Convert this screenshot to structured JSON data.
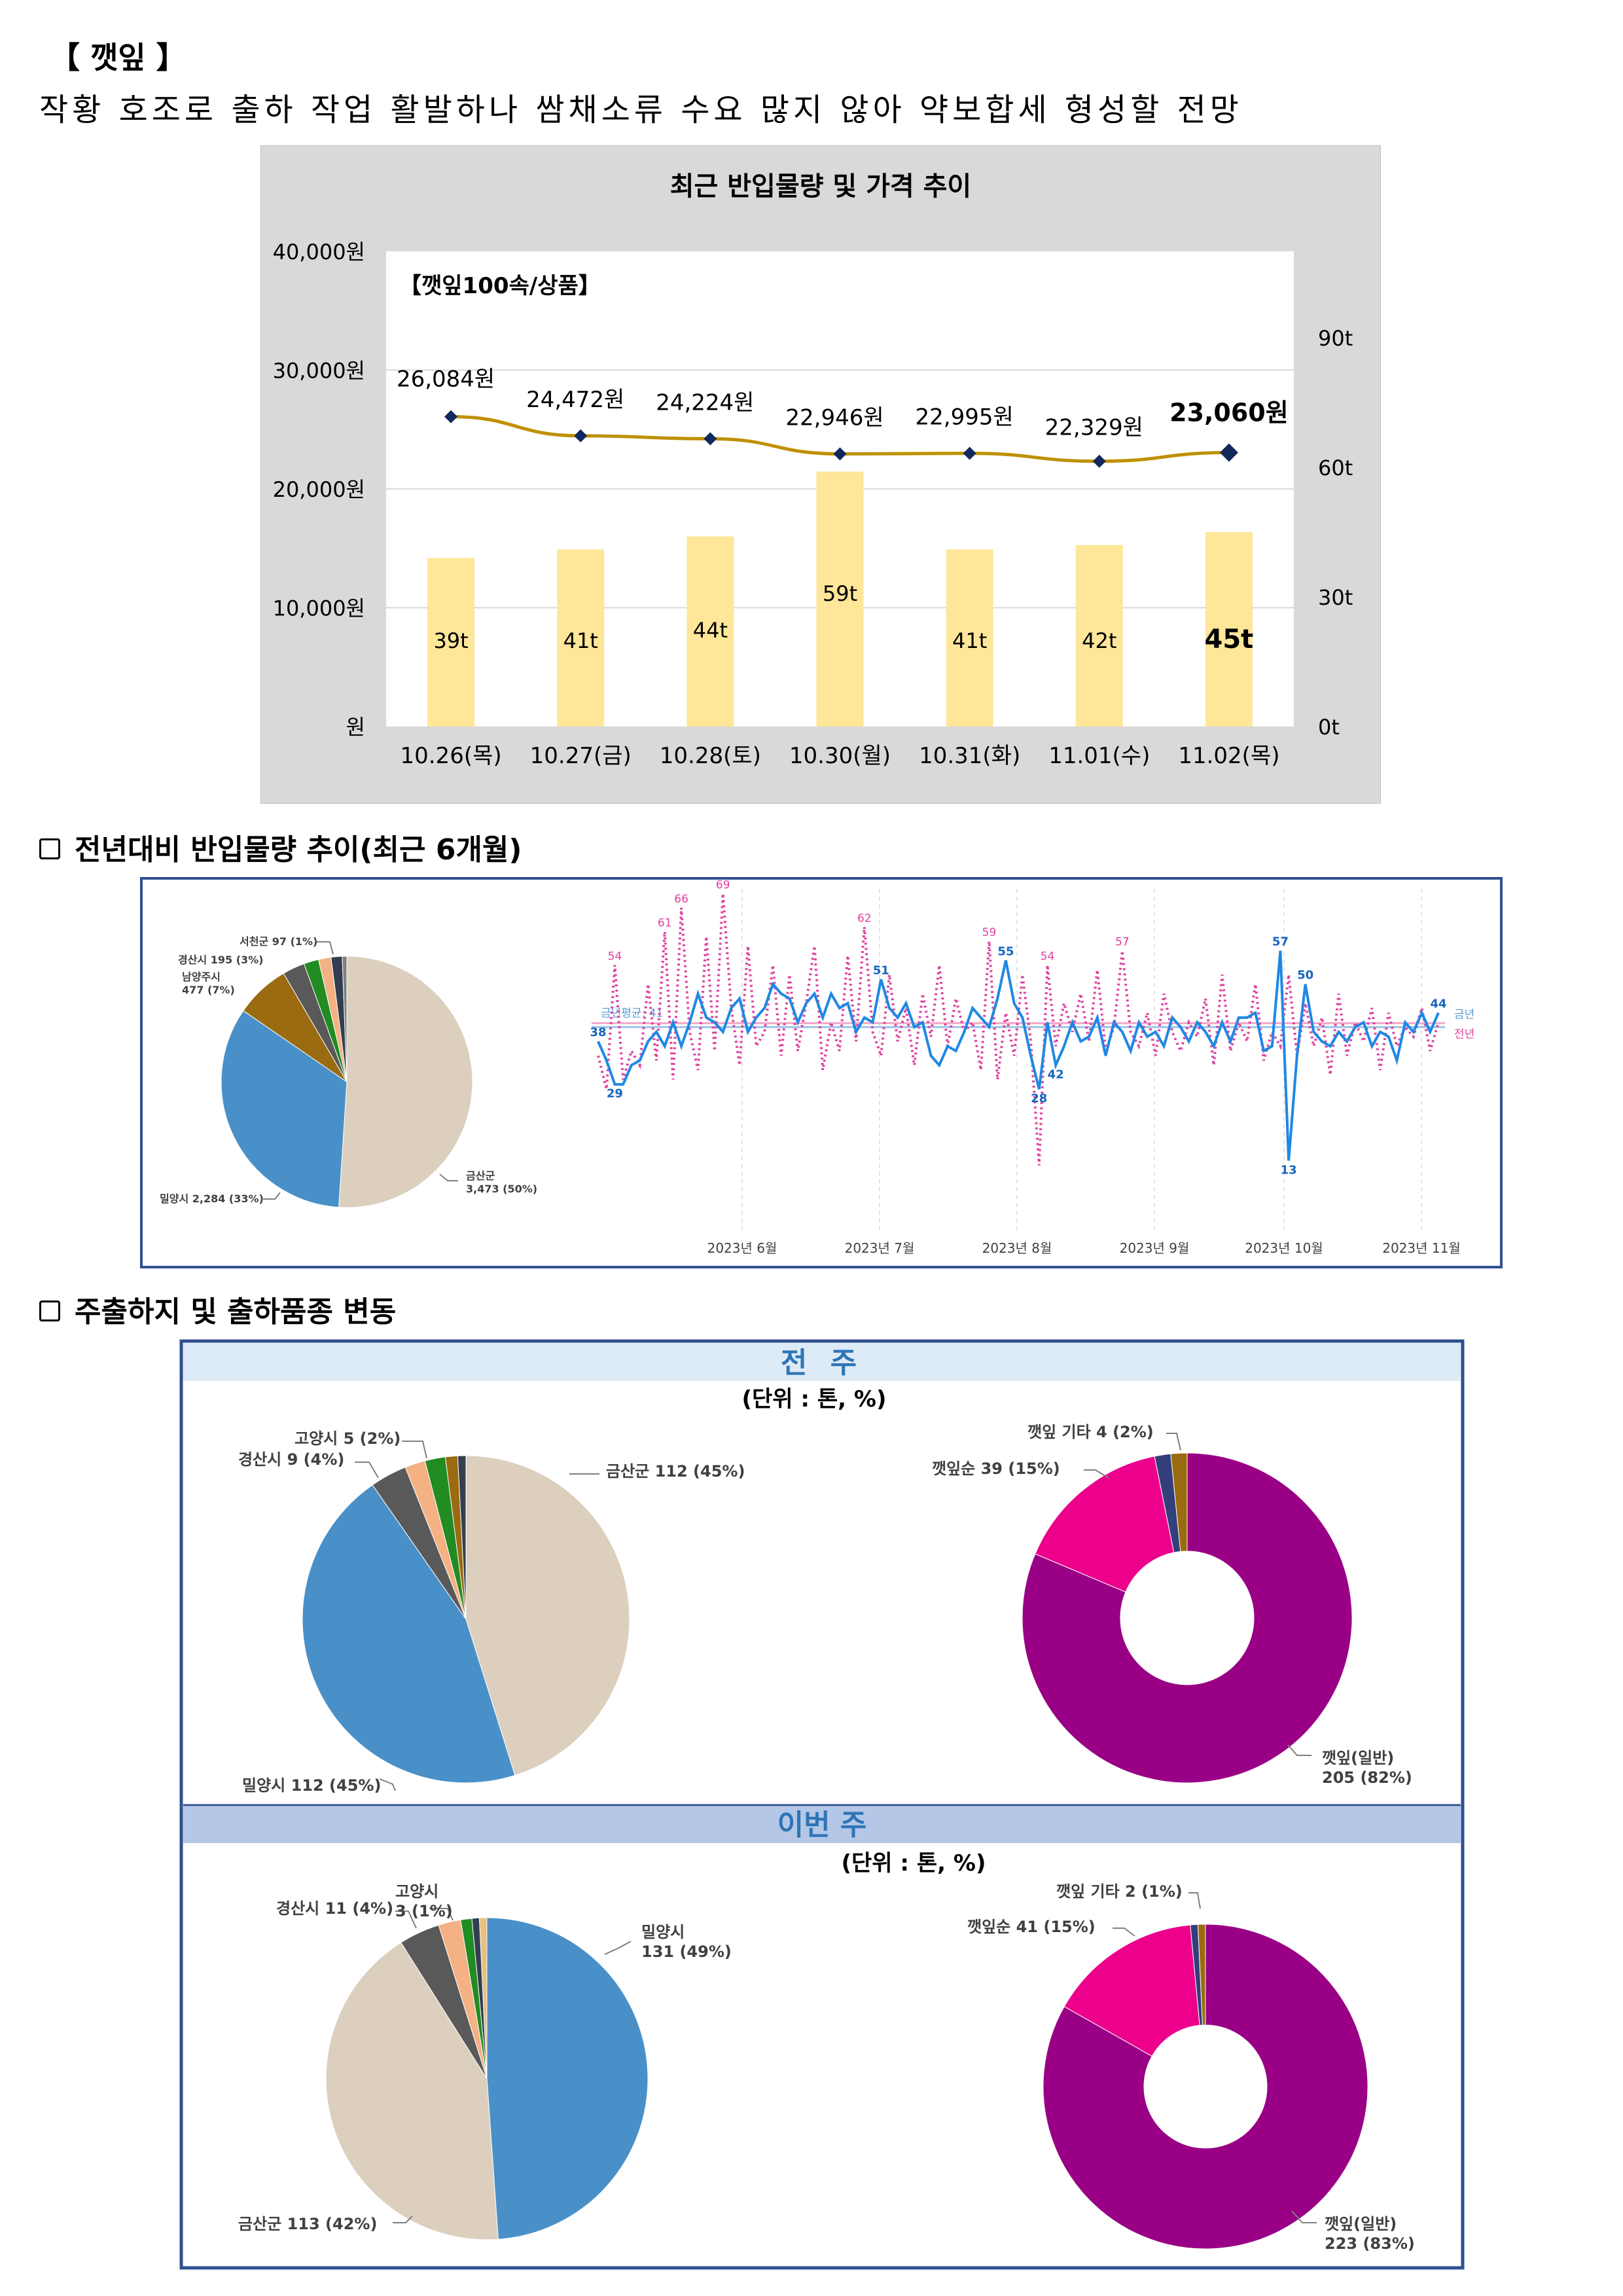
{
  "title": "【 깻잎 】",
  "subtitle": "작황 호조로 출하 작업 활발하나 쌈채소류 수요 많지 않아 약보합세 형성할 전망",
  "colors": {
    "bar": "#FFE699",
    "line": "#BF9000",
    "marker": "#10295C",
    "this_year": "#1E88E5",
    "last_year": "#E040A0",
    "frame": "#2F4F8F",
    "band1": "#DDEBF7",
    "band2": "#B4C7E7"
  },
  "price_chart": {
    "chart_data": {
      "type": "bar+line",
      "title": "최근 반입물량 및 가격 추이",
      "inner_label": "【깻잎100속/상품】",
      "categories": [
        "10.26(목)",
        "10.27(금)",
        "10.28(토)",
        "10.30(월)",
        "10.31(화)",
        "11.01(수)",
        "11.02(목)"
      ],
      "volume_t": [
        39,
        41,
        44,
        59,
        41,
        42,
        45
      ],
      "volume_labels": [
        "39t",
        "41t",
        "44t",
        "59t",
        "41t",
        "42t",
        "45t"
      ],
      "price_won": [
        26084,
        24472,
        24224,
        22946,
        22995,
        22329,
        23060
      ],
      "price_labels": [
        "26,084원",
        "24,472원",
        "24,224원",
        "22,946원",
        "22,995원",
        "22,329원",
        "23,060원"
      ],
      "left_axis": {
        "range": [
          0,
          40000
        ],
        "ticks": [
          "원",
          "10,000원",
          "20,000원",
          "30,000원",
          "40,000원"
        ]
      },
      "right_axis": {
        "range": [
          0,
          110
        ],
        "ticks": [
          "0t",
          "30t",
          "60t",
          "90t"
        ],
        "tick_values": [
          0,
          30,
          60,
          90
        ]
      }
    }
  },
  "section1": {
    "heading": "전년대비 반입물량 추이(최근 6개월)",
    "pie": {
      "chart_data": {
        "type": "pie",
        "slices": [
          {
            "name": "금산군",
            "value": 3473,
            "pct": "50%",
            "label": "금산군",
            "sub": "3,473 (50%)",
            "color": "#DCCFBE"
          },
          {
            "name": "밀양시",
            "value": 2284,
            "pct": "33%",
            "label": "밀양시 2,284 (33%)",
            "color": "#4A90C8"
          },
          {
            "name": "남양주시",
            "value": 477,
            "pct": "7%",
            "label": "남양주시",
            "sub": "477 (7%)",
            "color": "#9A6B10"
          },
          {
            "name": "경산시",
            "value": 195,
            "pct": "3%",
            "label": "경산시 195 (3%)",
            "color": "#595959"
          },
          {
            "name": "기타1",
            "value": 130,
            "color": "#228B22"
          },
          {
            "name": "기타2",
            "value": 110,
            "color": "#F4B183"
          },
          {
            "name": "서천군",
            "value": 97,
            "pct": "1%",
            "label": "서천군 97 (1%)",
            "color": "#333F50"
          },
          {
            "name": "기타3",
            "value": 40,
            "color": "#7F7F7F"
          }
        ]
      }
    },
    "timeseries": {
      "chart_data": {
        "type": "line",
        "months": [
          "2023년 6월",
          "2023년 7월",
          "2023년 8월",
          "2023년 9월",
          "2023년 10월",
          "2023년 11월"
        ],
        "legend": [
          "금년",
          "전년"
        ],
        "avg_label": "금년평균: 41",
        "y_range": [
          0,
          70
        ],
        "this_year": [
          38,
          34,
          29,
          29,
          33,
          34,
          38,
          40,
          37,
          42,
          37,
          42,
          48,
          43,
          42,
          40,
          45,
          47,
          40,
          43,
          45,
          50,
          48,
          47,
          42,
          46,
          48,
          43,
          48,
          45,
          46,
          40,
          43,
          42,
          51,
          45,
          43,
          46,
          41,
          42,
          35,
          33,
          37,
          36,
          40,
          45,
          43,
          41,
          47,
          55,
          46,
          43,
          35,
          28,
          42,
          33,
          37,
          42,
          38,
          39,
          43,
          35,
          42,
          40,
          36,
          42,
          39,
          40,
          37,
          43,
          41,
          38,
          42,
          40,
          37,
          42,
          38,
          43,
          43,
          44,
          36,
          37,
          57,
          13,
          35,
          50,
          40,
          38,
          37,
          40,
          38,
          41,
          42,
          37,
          40,
          39,
          34,
          42,
          40,
          44,
          40,
          44
        ],
        "last_year": [
          35,
          28,
          54,
          30,
          36,
          33,
          50,
          34,
          61,
          30,
          66,
          40,
          32,
          60,
          36,
          69,
          45,
          33,
          58,
          37,
          40,
          54,
          35,
          52,
          36,
          46,
          58,
          32,
          42,
          36,
          56,
          38,
          62,
          40,
          35,
          52,
          38,
          45,
          33,
          48,
          39,
          54,
          37,
          47,
          40,
          42,
          32,
          59,
          30,
          44,
          35,
          52,
          38,
          12,
          54,
          37,
          46,
          40,
          48,
          38,
          53,
          36,
          41,
          57,
          40,
          37,
          44,
          35,
          48,
          40,
          36,
          42,
          39,
          47,
          33,
          52,
          36,
          42,
          38,
          50,
          34,
          40,
          37,
          52,
          35,
          46,
          37,
          43,
          31,
          48,
          35,
          42,
          38,
          45,
          32,
          44,
          37,
          41,
          39,
          45,
          36,
          42
        ],
        "point_labels_this_year": [
          {
            "i": 0,
            "v": "38"
          },
          {
            "i": 2,
            "v": "29"
          },
          {
            "i": 34,
            "v": "51"
          },
          {
            "i": 49,
            "v": "55"
          },
          {
            "i": 53,
            "v": "28"
          },
          {
            "i": 55,
            "v": "42"
          },
          {
            "i": 82,
            "v": "57"
          },
          {
            "i": 83,
            "v": "13"
          },
          {
            "i": 85,
            "v": "50"
          },
          {
            "i": 101,
            "v": "44"
          }
        ],
        "point_labels_last_year": [
          {
            "i": 2,
            "v": "54"
          },
          {
            "i": 8,
            "v": "61"
          },
          {
            "i": 10,
            "v": "66"
          },
          {
            "i": 15,
            "v": "69"
          },
          {
            "i": 32,
            "v": "62"
          },
          {
            "i": 47,
            "v": "59"
          },
          {
            "i": 54,
            "v": "54"
          },
          {
            "i": 63,
            "v": "57"
          }
        ]
      }
    }
  },
  "section2": {
    "heading": "주출하지 및 출하품종 변동",
    "unit": "(단위 : 톤, %)",
    "prev_week": {
      "band_label": "전 주",
      "region_pie": {
        "chart_data": {
          "type": "pie",
          "slices": [
            {
              "name": "금산군",
              "value": 112,
              "label": "금산군 112 (45%)",
              "color": "#DCCFBE"
            },
            {
              "name": "밀양시",
              "value": 112,
              "label": "밀양시 112 (45%)",
              "color": "#4A90C8"
            },
            {
              "name": "경산시",
              "value": 9,
              "label": "경산시 9 (4%)",
              "color": "#595959"
            },
            {
              "name": "기타1",
              "value": 5,
              "color": "#F4B183"
            },
            {
              "name": "고양시",
              "value": 5,
              "label": "고양시 5 (2%)",
              "color": "#228B22"
            },
            {
              "name": "기타2",
              "value": 3,
              "color": "#9A6B10"
            },
            {
              "name": "기타3",
              "value": 2,
              "color": "#333F50"
            }
          ]
        }
      },
      "variety_donut": {
        "chart_data": {
          "type": "pie",
          "slices": [
            {
              "name": "깻잎(일반)",
              "value": 205,
              "label": "깻잎(일반)",
              "sub": "205 (82%)",
              "color": "#990085"
            },
            {
              "name": "깻잎순",
              "value": 39,
              "label": "깻잎순 39 (15%)",
              "color": "#EC008C"
            },
            {
              "name": "기타a",
              "value": 4,
              "color": "#333F7A"
            },
            {
              "name": "깻잎 기타",
              "value": 4,
              "label": "깻잎 기타 4 (2%)",
              "color": "#9A6B10"
            }
          ]
        }
      }
    },
    "this_week": {
      "band_label": "이번 주",
      "region_pie": {
        "chart_data": {
          "type": "pie",
          "slices": [
            {
              "name": "밀양시",
              "value": 131,
              "label": "밀양시",
              "sub": "131 (49%)",
              "color": "#4A90C8"
            },
            {
              "name": "금산군",
              "value": 113,
              "label": "금산군 113 (42%)",
              "color": "#DCCFBE"
            },
            {
              "name": "경산시",
              "value": 11,
              "label": "경산시 11 (4%)",
              "color": "#595959"
            },
            {
              "name": "기타1",
              "value": 6,
              "color": "#F4B183"
            },
            {
              "name": "고양시",
              "value": 3,
              "label": "고양시",
              "sub": "3 (1%)",
              "color": "#228B22"
            },
            {
              "name": "기타2",
              "value": 2,
              "color": "#333F50"
            },
            {
              "name": "기타3",
              "value": 2,
              "color": "#E8C080"
            }
          ]
        }
      },
      "variety_donut": {
        "chart_data": {
          "type": "pie",
          "slices": [
            {
              "name": "깻잎(일반)",
              "value": 223,
              "label": "깻잎(일반)",
              "sub": "223 (83%)",
              "color": "#990085"
            },
            {
              "name": "깻잎순",
              "value": 41,
              "label": "깻잎순 41 (15%)",
              "color": "#EC008C"
            },
            {
              "name": "기타a",
              "value": 2,
              "color": "#333F7A"
            },
            {
              "name": "깻잎 기타",
              "value": 2,
              "label": "깻잎 기타 2 (1%)",
              "color": "#9A6B10"
            }
          ]
        }
      }
    }
  }
}
